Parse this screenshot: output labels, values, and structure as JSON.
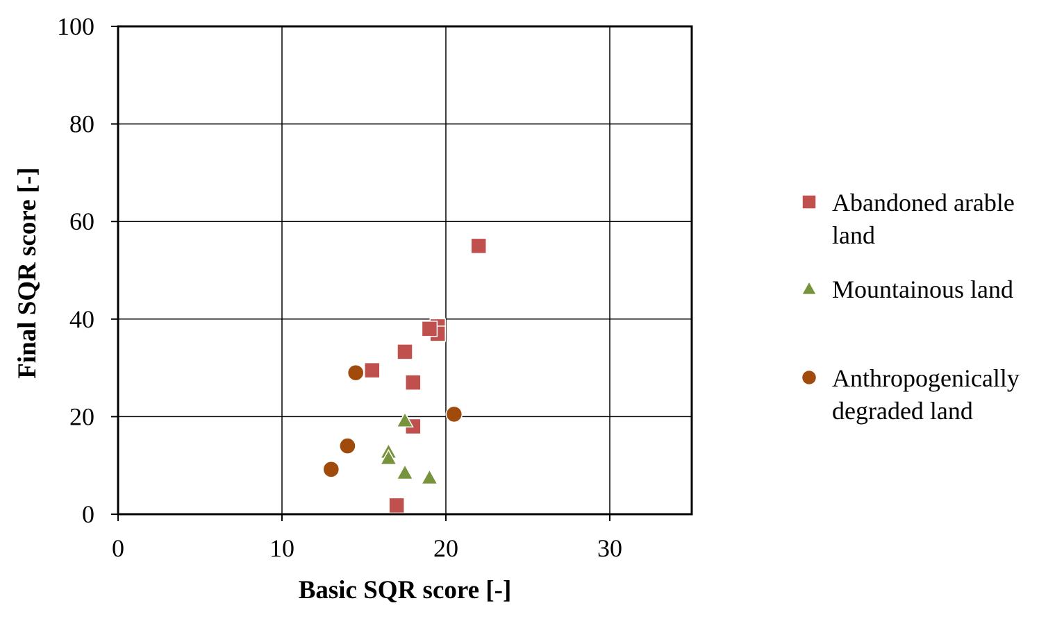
{
  "chart_data": {
    "type": "scatter",
    "title": "",
    "xlabel": "Basic SQR score [-]",
    "ylabel": "Final SQR score [-]",
    "xlim": [
      0,
      35
    ],
    "ylim": [
      0,
      100
    ],
    "xticks": [
      0,
      10,
      20,
      30
    ],
    "yticks": [
      0,
      20,
      40,
      60,
      80,
      100
    ],
    "grid": true,
    "legend_position": "right",
    "series": [
      {
        "name": "Abandoned arable land",
        "legend_lines": [
          "Abandoned arable",
          "land"
        ],
        "marker": "square",
        "color": "#c0504d",
        "points": [
          {
            "x": 22.0,
            "y": 55.0
          },
          {
            "x": 19.5,
            "y": 38.5
          },
          {
            "x": 19.5,
            "y": 37.0
          },
          {
            "x": 19.0,
            "y": 38.0
          },
          {
            "x": 17.5,
            "y": 33.3
          },
          {
            "x": 15.5,
            "y": 29.5
          },
          {
            "x": 18.0,
            "y": 27.0
          },
          {
            "x": 18.0,
            "y": 18.0
          },
          {
            "x": 17.0,
            "y": 1.8
          }
        ]
      },
      {
        "name": "Mountainous land",
        "legend_lines": [
          "Mountainous land"
        ],
        "marker": "triangle",
        "color": "#77933c",
        "points": [
          {
            "x": 17.5,
            "y": 19.2
          },
          {
            "x": 16.5,
            "y": 12.8
          },
          {
            "x": 16.5,
            "y": 11.5
          },
          {
            "x": 17.5,
            "y": 8.5
          },
          {
            "x": 19.0,
            "y": 7.5
          }
        ]
      },
      {
        "name": "Anthropogenically degraded land",
        "legend_lines": [
          "Anthropogenically",
          "degraded land"
        ],
        "marker": "circle",
        "color": "#a04a0c",
        "points": [
          {
            "x": 14.5,
            "y": 29.0
          },
          {
            "x": 20.5,
            "y": 20.5
          },
          {
            "x": 14.0,
            "y": 14.0
          },
          {
            "x": 13.0,
            "y": 9.2
          }
        ]
      }
    ]
  }
}
